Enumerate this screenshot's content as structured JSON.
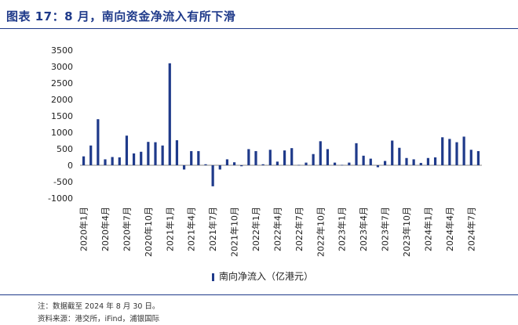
{
  "title": "图表 17：8 月，南向资金净流入有所下滑",
  "legend": {
    "label": "南向净流入（亿港元）",
    "color": "#1f3a8a"
  },
  "footer": {
    "note": "注：数据截至 2024 年 8 月 30 日。",
    "source": "资料来源：港交所，iFind，浦银国际"
  },
  "chart_data": {
    "type": "bar",
    "ylim": [
      -1000,
      3500
    ],
    "yticks": [
      -1000,
      -500,
      0,
      500,
      1000,
      1500,
      2000,
      2500,
      3000,
      3500
    ],
    "grid": false,
    "legend_position": "bottom",
    "x_tick_labels": [
      "2020年1月",
      "2020年4月",
      "2020年7月",
      "2020年10月",
      "2021年1月",
      "2021年4月",
      "2021年7月",
      "2021年10月",
      "2022年1月",
      "2022年4月",
      "2022年7月",
      "2022年10月",
      "2023年1月",
      "2023年4月",
      "2023年7月",
      "2023年10月",
      "2024年1月",
      "2024年4月",
      "2024年7月"
    ],
    "categories": [
      "2020-01",
      "2020-02",
      "2020-03",
      "2020-04",
      "2020-05",
      "2020-06",
      "2020-07",
      "2020-08",
      "2020-09",
      "2020-10",
      "2020-11",
      "2020-12",
      "2021-01",
      "2021-02",
      "2021-03",
      "2021-04",
      "2021-05",
      "2021-06",
      "2021-07",
      "2021-08",
      "2021-09",
      "2021-10",
      "2021-11",
      "2021-12",
      "2022-01",
      "2022-02",
      "2022-03",
      "2022-04",
      "2022-05",
      "2022-06",
      "2022-07",
      "2022-08",
      "2022-09",
      "2022-10",
      "2022-11",
      "2022-12",
      "2023-01",
      "2023-02",
      "2023-03",
      "2023-04",
      "2023-05",
      "2023-06",
      "2023-07",
      "2023-08",
      "2023-09",
      "2023-10",
      "2023-11",
      "2023-12",
      "2024-01",
      "2024-02",
      "2024-03",
      "2024-04",
      "2024-05",
      "2024-06",
      "2024-07",
      "2024-08"
    ],
    "series": [
      {
        "name": "南向净流入（亿港元）",
        "values": [
          270,
          600,
          1400,
          180,
          250,
          240,
          900,
          360,
          410,
          710,
          700,
          600,
          3100,
          760,
          -130,
          430,
          430,
          30,
          -640,
          -130,
          180,
          90,
          -30,
          490,
          430,
          30,
          470,
          110,
          450,
          520,
          10,
          80,
          340,
          730,
          490,
          80,
          10,
          80,
          670,
          290,
          200,
          -60,
          130,
          750,
          530,
          220,
          180,
          70,
          220,
          240,
          850,
          800,
          700,
          870,
          470,
          430
        ]
      }
    ]
  }
}
